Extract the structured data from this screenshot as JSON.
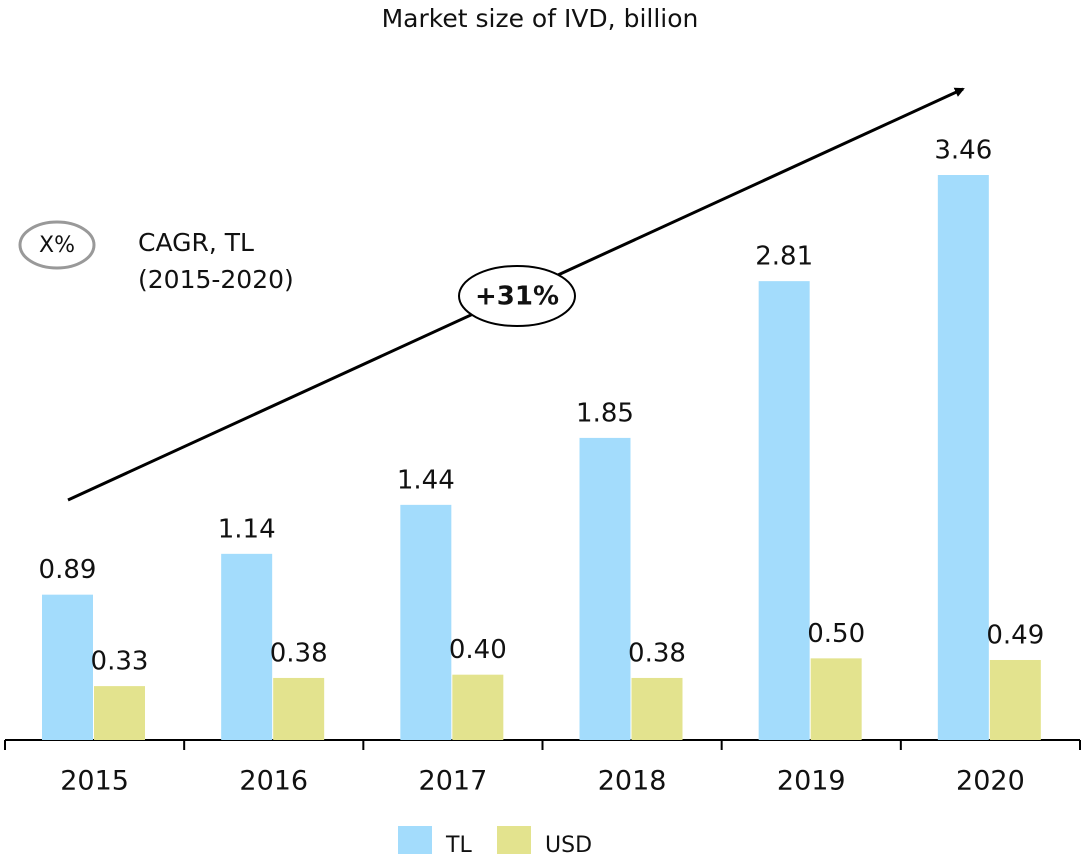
{
  "chart_data": {
    "type": "bar",
    "title": "Market size of IVD, billion",
    "categories": [
      "2015",
      "2016",
      "2017",
      "2018",
      "2019",
      "2020"
    ],
    "series": [
      {
        "name": "TL",
        "color": "#a3dcfc",
        "values": [
          0.89,
          1.14,
          1.44,
          1.85,
          2.81,
          3.46
        ],
        "value_labels": [
          "0.89",
          "1.14",
          "1.44",
          "1.85",
          "2.81",
          "3.46"
        ]
      },
      {
        "name": "USD",
        "color": "#e3e38e",
        "values": [
          0.33,
          0.38,
          0.4,
          0.38,
          0.5,
          0.49
        ],
        "value_labels": [
          "0.33",
          "0.38",
          "0.40",
          "0.38",
          "0.50",
          "0.49"
        ]
      }
    ],
    "annotations": {
      "growth": "+31%",
      "legend_symbol": "X%",
      "legend_text": "CAGR, TL",
      "legend_period": "(2015-2020)"
    },
    "legend": "bottom"
  }
}
